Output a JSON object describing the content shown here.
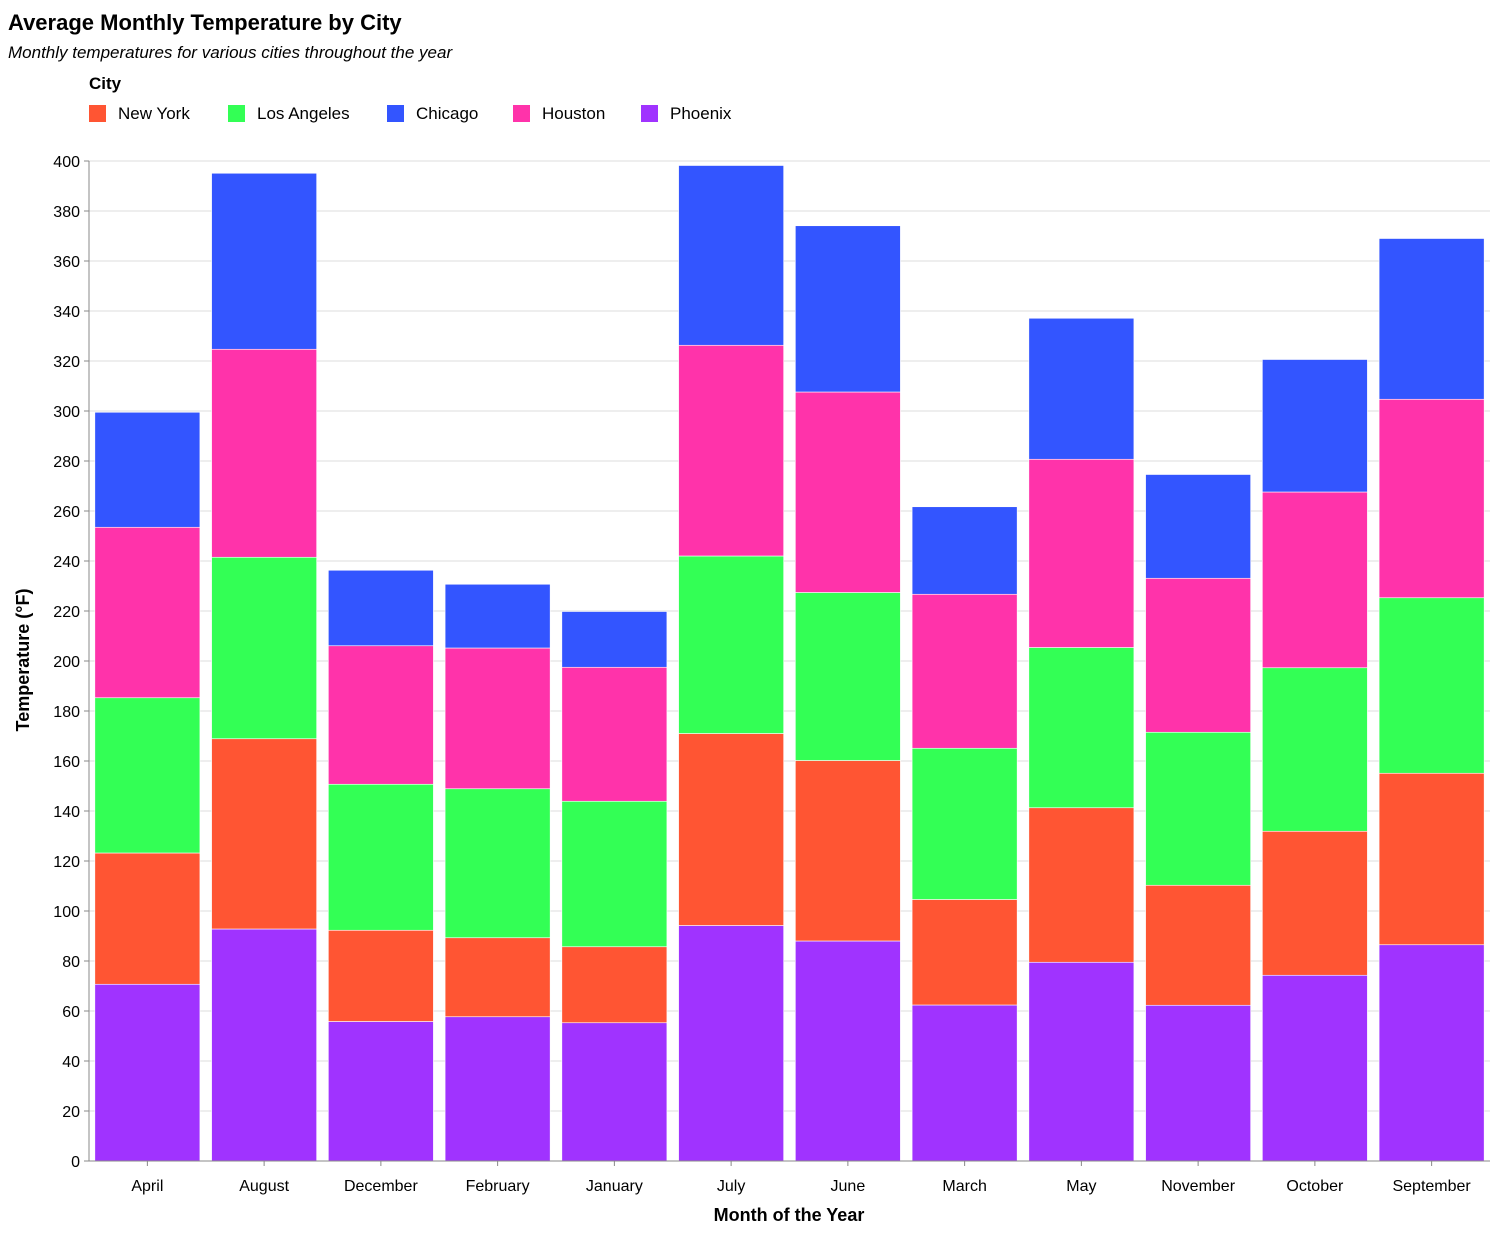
{
  "chart_data": {
    "type": "bar",
    "stacked": true,
    "title": "Average Monthly Temperature by City",
    "subtitle": "Monthly temperatures for various cities throughout the year",
    "xlabel": "Month of the Year",
    "ylabel": "Temperature (°F)",
    "ylim": [
      0,
      400
    ],
    "yticks": [
      0,
      20,
      40,
      60,
      80,
      100,
      120,
      140,
      160,
      180,
      200,
      220,
      240,
      260,
      280,
      300,
      320,
      340,
      360,
      380,
      400
    ],
    "grid": true,
    "legend": {
      "title": "City",
      "placement": "top-left"
    },
    "categories": [
      "April",
      "August",
      "December",
      "February",
      "January",
      "July",
      "June",
      "March",
      "May",
      "November",
      "October",
      "September"
    ],
    "stack_order": [
      "Phoenix",
      "New York",
      "Los Angeles",
      "Houston",
      "Chicago"
    ],
    "series": [
      {
        "name": "New York",
        "color": "#ff5533",
        "values": [
          52.5,
          76.1,
          36.5,
          31.6,
          30.4,
          76.8,
          72.2,
          42.2,
          61.8,
          48.0,
          57.6,
          68.6
        ]
      },
      {
        "name": "Los Angeles",
        "color": "#33ff55",
        "values": [
          62.1,
          72.6,
          58.4,
          59.6,
          58.2,
          71.0,
          67.2,
          60.5,
          64.1,
          61.2,
          65.4,
          70.2
        ]
      },
      {
        "name": "Chicago",
        "color": "#3355ff",
        "values": [
          46.0,
          70.4,
          30.2,
          25.5,
          22.3,
          71.9,
          66.5,
          35.0,
          56.4,
          41.5,
          53.0,
          64.3
        ]
      },
      {
        "name": "Houston",
        "color": "#ff33aa",
        "values": [
          68.2,
          83.2,
          55.4,
          56.3,
          53.6,
          84.3,
          80.2,
          61.6,
          75.3,
          61.6,
          70.3,
          79.4
        ]
      },
      {
        "name": "Phoenix",
        "color": "#a033ff",
        "values": [
          70.7,
          92.8,
          55.8,
          57.7,
          55.3,
          94.2,
          88.0,
          62.4,
          79.5,
          62.3,
          74.3,
          86.5
        ]
      }
    ]
  }
}
